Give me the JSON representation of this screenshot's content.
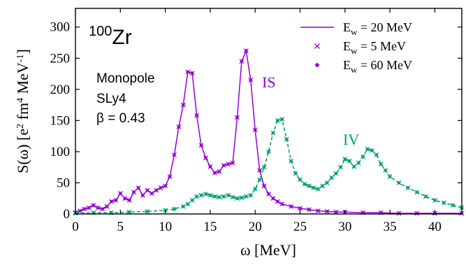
{
  "chart_data": {
    "type": "line",
    "title": "",
    "xlabel": "ω [MeV]",
    "ylabel": "S(ω) [e2 fm4 MeV-1]",
    "xlim": [
      0,
      43
    ],
    "ylim": [
      0,
      330
    ],
    "xticks": [
      0,
      5,
      10,
      15,
      20,
      25,
      30,
      35,
      40
    ],
    "yticks": [
      0,
      50,
      100,
      150,
      200,
      250,
      300
    ],
    "grid": false,
    "legend_position": "top-right",
    "colors": {
      "IS": "#9400d3",
      "IV": "#009e73"
    },
    "annotations": {
      "nucleus_mass": "100",
      "nucleus_symbol": "Zr",
      "mode": "Monopole",
      "force": "SLy4",
      "beta": "β = 0.43",
      "is_label": "IS",
      "iv_label": "IV"
    },
    "legend": [
      {
        "label_main": "E",
        "label_sub": "w",
        "label_rest": " = 20 MeV",
        "style": "line"
      },
      {
        "label_main": "E",
        "label_sub": "w",
        "label_rest": " = 5 MeV",
        "style": "x"
      },
      {
        "label_main": "E",
        "label_sub": "w",
        "label_rest": " = 60 MeV",
        "style": "diamond"
      }
    ],
    "series": [
      {
        "name": "IS",
        "x": [
          0,
          0.5,
          1,
          1.5,
          2,
          2.5,
          3,
          3.5,
          4,
          4.5,
          5,
          5.5,
          6,
          6.5,
          7,
          7.5,
          8,
          8.5,
          9,
          9.5,
          10,
          10.5,
          11,
          11.5,
          12,
          12.5,
          13,
          13.5,
          14,
          14.5,
          15,
          15.5,
          16,
          16.5,
          17,
          17.5,
          18,
          18.5,
          19,
          19.5,
          20,
          20.5,
          21,
          21.5,
          22,
          22.5,
          23,
          24,
          25,
          26,
          27,
          28,
          29,
          30,
          32,
          34,
          36,
          38,
          40,
          43
        ],
        "y": [
          2,
          5,
          8,
          10,
          14,
          10,
          8,
          12,
          20,
          22,
          33,
          25,
          22,
          35,
          42,
          30,
          38,
          33,
          38,
          42,
          45,
          60,
          95,
          140,
          175,
          228,
          226,
          158,
          110,
          90,
          76,
          66,
          68,
          78,
          80,
          82,
          155,
          245,
          262,
          215,
          135,
          70,
          45,
          32,
          25,
          20,
          16,
          12,
          9,
          7,
          5,
          4,
          3,
          3,
          2,
          2,
          1,
          1,
          1,
          1
        ]
      },
      {
        "name": "IV",
        "x": [
          0,
          2,
          4,
          6,
          8,
          10,
          11,
          12,
          12.5,
          13,
          13.5,
          14,
          14.5,
          15,
          15.5,
          16,
          16.5,
          17,
          17.5,
          18,
          18.5,
          19,
          19.5,
          20,
          20.5,
          21,
          21.5,
          22,
          22.5,
          23,
          23.5,
          24,
          24.5,
          25,
          25.5,
          26,
          26.5,
          27,
          27.5,
          28,
          28.5,
          29,
          29.5,
          30,
          30.5,
          31,
          31.5,
          32,
          32.5,
          33,
          33.5,
          34,
          34.5,
          35,
          36,
          37,
          38,
          39,
          40,
          41,
          42,
          43
        ],
        "y": [
          1,
          2,
          2,
          3,
          4,
          6,
          8,
          12,
          16,
          22,
          28,
          30,
          32,
          30,
          28,
          27,
          28,
          30,
          27,
          25,
          26,
          28,
          30,
          40,
          55,
          75,
          100,
          130,
          150,
          152,
          120,
          85,
          65,
          55,
          48,
          45,
          42,
          40,
          45,
          50,
          58,
          65,
          75,
          88,
          85,
          76,
          82,
          92,
          104,
          102,
          95,
          80,
          70,
          60,
          50,
          42,
          35,
          28,
          22,
          18,
          14,
          10
        ]
      }
    ]
  }
}
